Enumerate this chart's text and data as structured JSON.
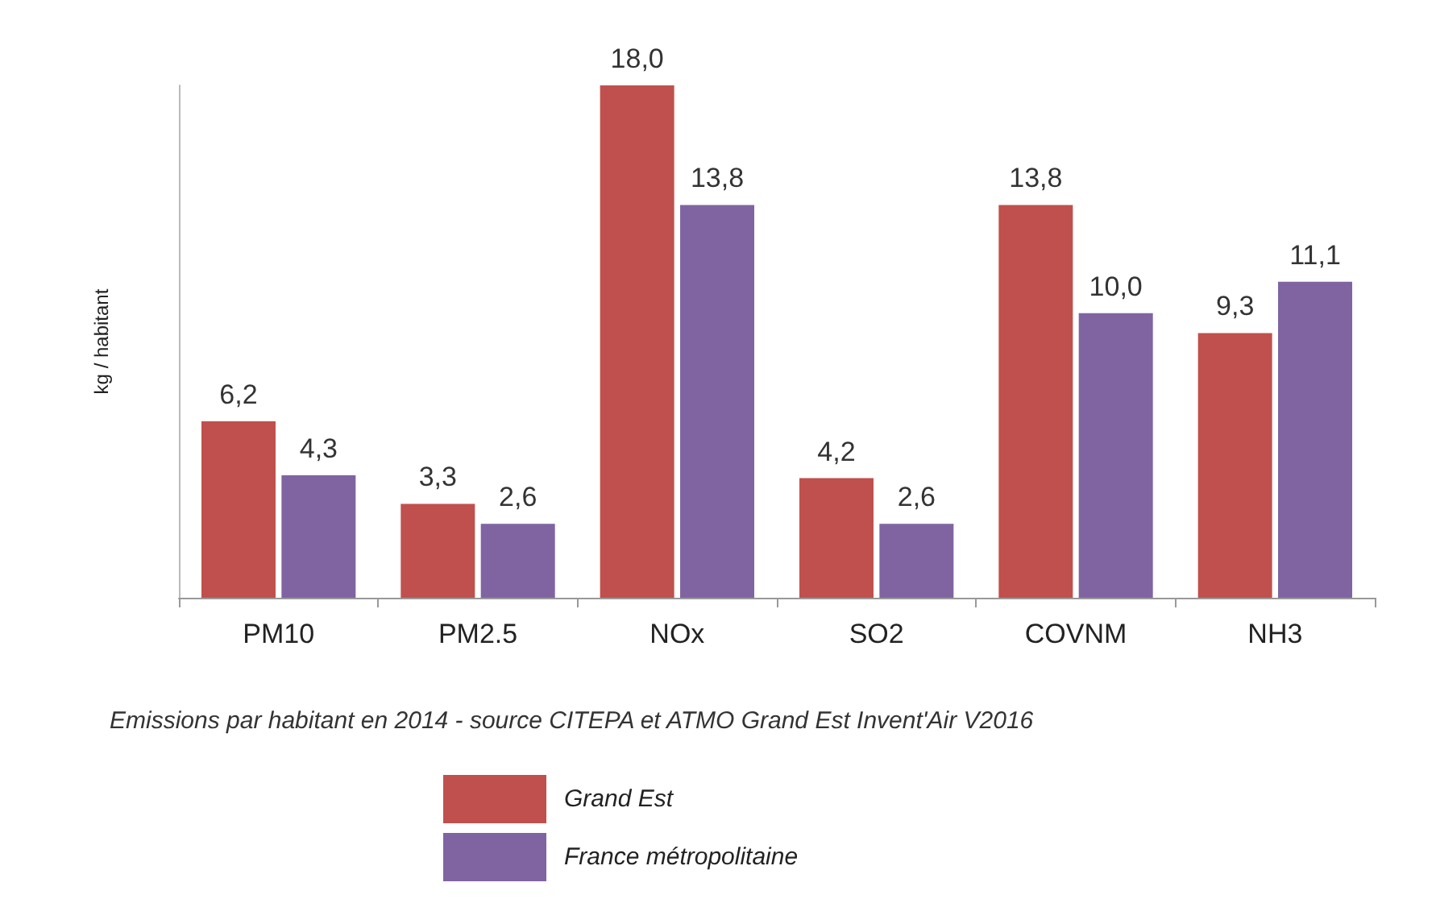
{
  "chart_data": {
    "type": "bar",
    "ylabel": "kg / habitant",
    "categories": [
      "PM10",
      "PM2.5",
      "NOx",
      "SO2",
      "COVNM",
      "NH3"
    ],
    "series": [
      {
        "name": "Grand Est",
        "color": "#c0504d",
        "values": [
          6.2,
          3.3,
          18.0,
          4.2,
          13.8,
          9.3
        ],
        "value_labels": [
          "6,2",
          "3,3",
          "18,0",
          "4,2",
          "13,8",
          "9,3"
        ]
      },
      {
        "name": "France métropolitaine",
        "color": "#8064a2",
        "values": [
          4.3,
          2.6,
          13.8,
          2.6,
          10.0,
          11.1
        ],
        "value_labels": [
          "4,3",
          "2,6",
          "13,8",
          "2,6",
          "10,0",
          "11,1"
        ]
      }
    ],
    "legend": "bottom",
    "grid": false,
    "annotations": [
      "Emissions par habitant en 2014 - source CITEPA et ATMO Grand Est Invent'Air V2016"
    ]
  }
}
